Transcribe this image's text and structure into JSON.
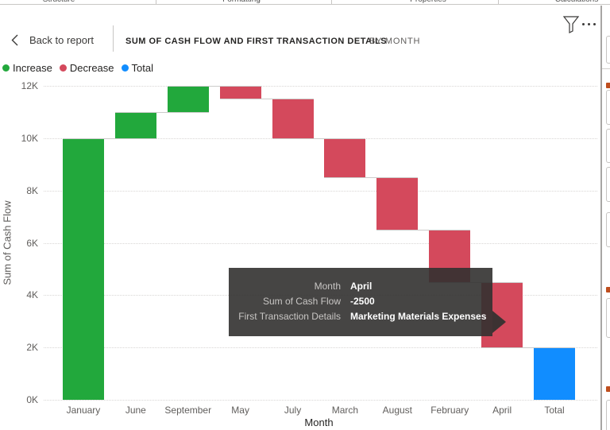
{
  "ribbon": {
    "tabs": [
      "Structure",
      "Formatting",
      "Properties",
      "Calculations"
    ]
  },
  "toolbar": {
    "back_label": "Back to report",
    "title": "SUM OF CASH FLOW AND FIRST TRANSACTION DETAILS",
    "subtitle": "BY MONTH",
    "icons": [
      "back-chevron-icon",
      "filter-funnel-icon",
      "more-options-icon"
    ]
  },
  "legend": {
    "position": "top-left",
    "items": [
      {
        "label": "Increase",
        "type": "increase",
        "color": "#22A83C"
      },
      {
        "label": "Decrease",
        "type": "decrease",
        "color": "#D4495C"
      },
      {
        "label": "Total",
        "type": "total",
        "color": "#118DFF"
      }
    ]
  },
  "chart_data": {
    "type": "waterfall",
    "title": "Sum of Cash Flow and First Transaction Details by Month",
    "xlabel": "Month",
    "ylabel": "Sum of Cash Flow",
    "ylim": [
      0,
      12000
    ],
    "y_ticks": [
      "0K",
      "2K",
      "4K",
      "6K",
      "8K",
      "10K",
      "12K"
    ],
    "grid": true,
    "legend_position": "top-left",
    "categories": [
      "January",
      "June",
      "September",
      "May",
      "July",
      "March",
      "August",
      "February",
      "April",
      "Total"
    ],
    "bars": [
      {
        "category": "January",
        "delta": 10000,
        "type": "increase",
        "start": 0,
        "end": 10000
      },
      {
        "category": "June",
        "delta": 1000,
        "type": "increase",
        "start": 10000,
        "end": 11000
      },
      {
        "category": "September",
        "delta": 1000,
        "type": "increase",
        "start": 11000,
        "end": 12000
      },
      {
        "category": "May",
        "delta": -500,
        "type": "decrease",
        "start": 12000,
        "end": 11500
      },
      {
        "category": "July",
        "delta": -1500,
        "type": "decrease",
        "start": 11500,
        "end": 10000
      },
      {
        "category": "March",
        "delta": -1500,
        "type": "decrease",
        "start": 10000,
        "end": 8500
      },
      {
        "category": "August",
        "delta": -2000,
        "type": "decrease",
        "start": 8500,
        "end": 6500
      },
      {
        "category": "February",
        "delta": -2000,
        "type": "decrease",
        "start": 6500,
        "end": 4500
      },
      {
        "category": "April",
        "delta": -2500,
        "type": "decrease",
        "start": 4500,
        "end": 2000
      },
      {
        "category": "Total",
        "delta": 2000,
        "type": "total",
        "start": 0,
        "end": 2000
      }
    ]
  },
  "tooltip": {
    "rows": [
      {
        "label": "Month",
        "value": "April"
      },
      {
        "label": "Sum of Cash Flow",
        "value": "-2500"
      },
      {
        "label": "First Transaction Details",
        "value": "Marketing Materials Expenses"
      }
    ]
  },
  "colors": {
    "increase": "#22A83C",
    "decrease": "#D4495C",
    "total": "#118DFF",
    "tooltip_bg": "#323130",
    "axis_text": "#605E5C",
    "title_text": "#252423"
  }
}
